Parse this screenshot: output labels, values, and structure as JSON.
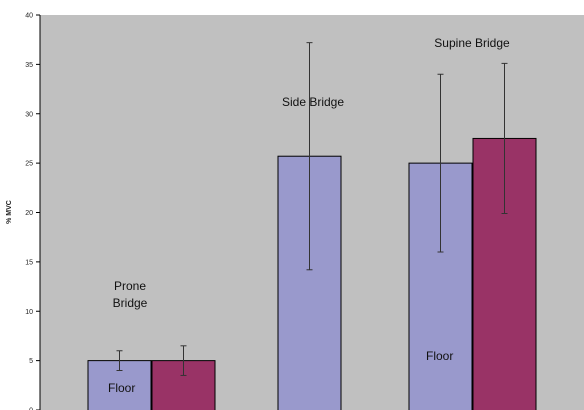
{
  "chart_data": {
    "type": "bar",
    "title": "",
    "xlabel": "",
    "ylabel": "% MVC",
    "ylim": [
      0,
      40
    ],
    "yticks": [
      0,
      5,
      10,
      15,
      20,
      25,
      30,
      35,
      40
    ],
    "categories": [
      "Prone Bridge",
      "Side Bridge",
      "Supine Bridge"
    ],
    "grid": false,
    "series": [
      {
        "color": "#9999cc",
        "values": [
          5.0,
          25.7,
          25.0
        ],
        "error": [
          1.0,
          11.5,
          9.0
        ]
      },
      {
        "color": "#993366",
        "values": [
          5.0,
          null,
          27.5
        ],
        "error": [
          1.5,
          null,
          7.6
        ]
      }
    ],
    "annotations": [
      {
        "text": "Prone"
      },
      {
        "text": "Bridge"
      },
      {
        "text": "Side Bridge"
      },
      {
        "text": "Supine Bridge"
      },
      {
        "text": "Floor"
      },
      {
        "text": "Floor"
      }
    ],
    "colors": {
      "plot_background": "#c0c0c0",
      "bar_outline": "#000000",
      "axis": "#000000"
    }
  }
}
